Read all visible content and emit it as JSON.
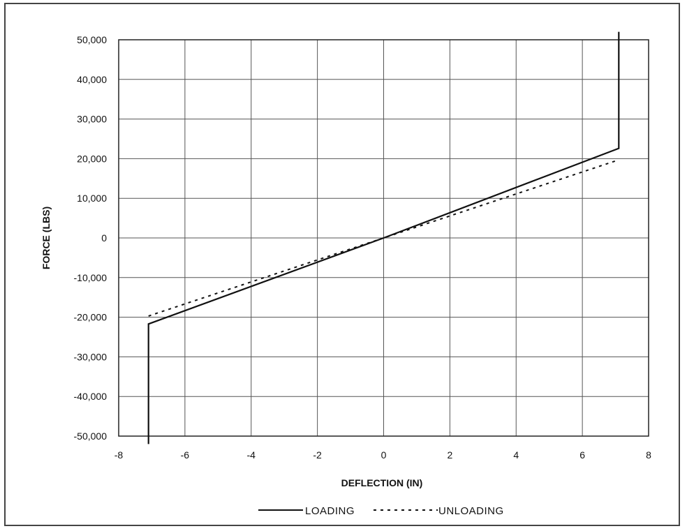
{
  "chart_data": {
    "type": "line",
    "title": "",
    "xlabel": "DEFLECTION (IN)",
    "ylabel": "FORCE (LBS)",
    "xlim": [
      -8,
      8
    ],
    "ylim": [
      -50000,
      50000
    ],
    "x_ticks": [
      "-8",
      "-6",
      "-4",
      "-2",
      "0",
      "2",
      "4",
      "6",
      "8"
    ],
    "y_ticks": [
      "50,000",
      "40,000",
      "30,000",
      "20,000",
      "10,000",
      "0",
      "-10,000",
      "-20,000",
      "-30,000",
      "-40,000",
      "-50,000"
    ],
    "grid": true,
    "legend_position": "bottom",
    "series": [
      {
        "name": "LOADING",
        "style": "solid",
        "color": "#111111",
        "points": [
          [
            -7.1,
            -52000
          ],
          [
            -7.1,
            -21700
          ],
          [
            0,
            0
          ],
          [
            7.1,
            22600
          ],
          [
            7.1,
            52000
          ]
        ]
      },
      {
        "name": "UNLOADING",
        "style": "dotted",
        "color": "#111111",
        "points": [
          [
            -7.1,
            -19700
          ],
          [
            0,
            0
          ],
          [
            7.1,
            19700
          ]
        ]
      }
    ]
  }
}
